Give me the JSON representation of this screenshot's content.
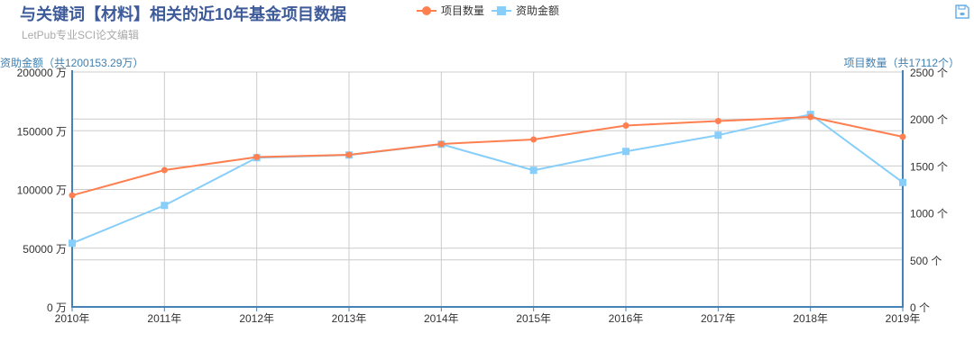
{
  "header": {
    "title": "与关键词【材料】相关的近10年基金项目数据",
    "subtitle": "LetPub专业SCI论文编辑"
  },
  "toolbar": {
    "save_icon": "save-as-image-icon"
  },
  "legend": [
    {
      "label": "项目数量",
      "color": "#ff7f50",
      "marker": "circle"
    },
    {
      "label": "资助金额",
      "color": "#87cefa",
      "marker": "square"
    }
  ],
  "axes": {
    "left_name": "资助金额（共1200153.29万）",
    "right_name": "项目数量（共17112个）",
    "left_ticks": [
      "0 万",
      "50000 万",
      "100000 万",
      "150000 万",
      "200000 万"
    ],
    "right_ticks": [
      "0 个",
      "500 个",
      "1000 个",
      "1500 个",
      "2000 个",
      "2500 个"
    ]
  },
  "colors": {
    "axis": "#4682b4",
    "grid": "#cccccc",
    "count_series": "#ff7f50",
    "funding_series": "#87cefa"
  },
  "chart_data": {
    "type": "line",
    "title": "与关键词【材料】相关的近10年基金项目数据",
    "subtitle": "LetPub专业SCI论文编辑",
    "categories": [
      "2010年",
      "2011年",
      "2012年",
      "2013年",
      "2014年",
      "2015年",
      "2016年",
      "2017年",
      "2018年",
      "2019年"
    ],
    "series": [
      {
        "name": "项目数量",
        "axis": "right",
        "unit": "个",
        "values": [
          1187,
          1456,
          1595,
          1619,
          1734,
          1782,
          1930,
          1978,
          2021,
          1810
        ]
      },
      {
        "name": "资助金额",
        "axis": "left",
        "unit": "万",
        "values": [
          54200,
          86400,
          127000,
          129300,
          138500,
          116300,
          132400,
          146200,
          163900,
          105953.29
        ]
      }
    ],
    "xlabel": "",
    "ylabel_left": "资助金额（共1200153.29万）",
    "ylabel_right": "项目数量（共17112个）",
    "ylim_left": [
      0,
      200000
    ],
    "ylim_right": [
      0,
      2500
    ],
    "totals": {
      "funding": "1200153.29万",
      "count": "17112个"
    },
    "grid": true,
    "legend_position": "top-center"
  }
}
